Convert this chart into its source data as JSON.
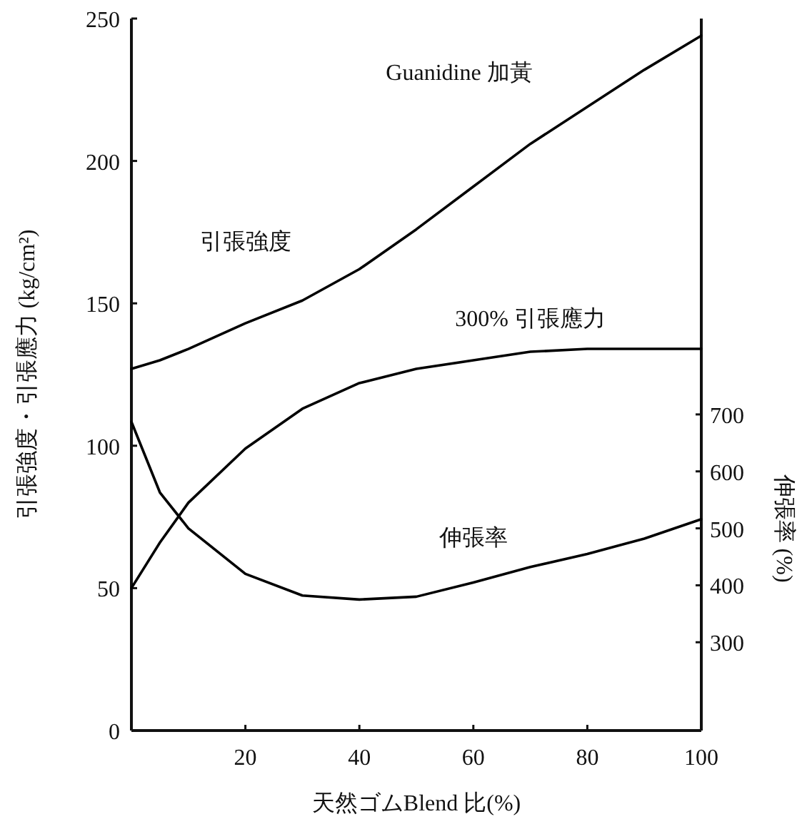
{
  "chart_data": {
    "type": "line",
    "xlabel": "天然ゴムBlend 比(%)",
    "ylabel": "引張強度・引張應力 (kg/cm²)",
    "y2label": "伸張率 (%)",
    "annotations": [
      "Guanidine 加黃"
    ],
    "x": [
      0,
      5,
      10,
      20,
      30,
      40,
      50,
      60,
      70,
      80,
      90,
      100
    ],
    "series": [
      {
        "name": "引張強度",
        "color": "#000000",
        "values": [
          127,
          130,
          134,
          143,
          151,
          162,
          176,
          191,
          206,
          219,
          232,
          244
        ]
      },
      {
        "name": "300% 引張應力",
        "color": "#000000",
        "values": [
          50,
          66,
          80,
          99,
          113,
          122,
          127,
          130,
          133,
          134,
          134,
          134
        ]
      },
      {
        "name": "伸張率",
        "color": "#000000",
        "axis": "y2",
        "values": [
          687,
          563,
          500,
          420,
          382,
          375,
          380,
          405,
          432,
          455,
          482,
          516
        ]
      }
    ],
    "xlim": [
      0,
      100
    ],
    "xticks": [
      20,
      40,
      60,
      80,
      100
    ],
    "ylim": [
      0,
      250
    ],
    "yticks": [
      0,
      50,
      100,
      150,
      200,
      250
    ],
    "y2lim": [
      145,
      1395
    ],
    "y2ticks": [
      300,
      400,
      500,
      600,
      700
    ]
  }
}
